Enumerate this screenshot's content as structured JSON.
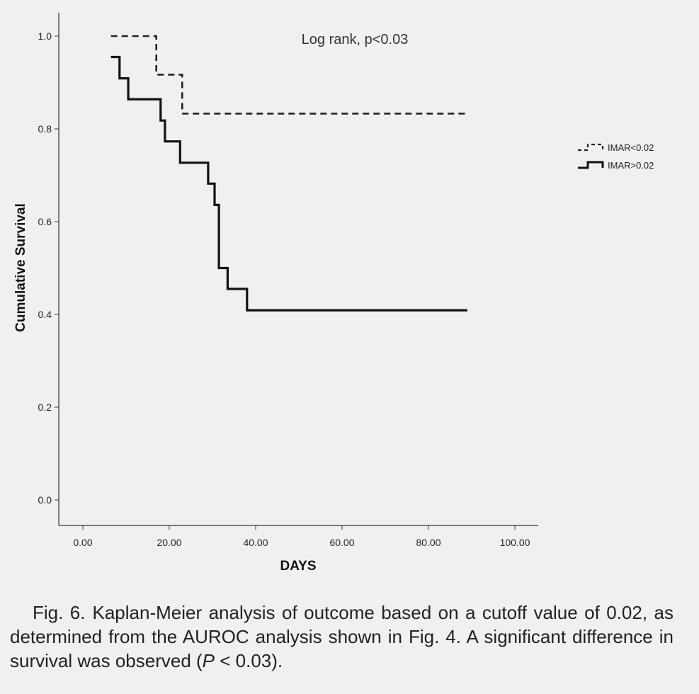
{
  "chart_data": {
    "type": "line",
    "subtype": "kaplan-meier-step",
    "xlabel": "DAYS",
    "ylabel": "Cumulative Survival",
    "xlim": [
      0,
      100
    ],
    "ylim": [
      0,
      1
    ],
    "x_ticks": [
      "0.00",
      "20.00",
      "40.00",
      "60.00",
      "80.00",
      "100.00"
    ],
    "y_ticks": [
      "0.0",
      "0.2",
      "0.4",
      "0.6",
      "0.8",
      "1.0"
    ],
    "x_tick_values": [
      0,
      20,
      40,
      60,
      80,
      100
    ],
    "y_tick_values": [
      0,
      0.2,
      0.4,
      0.6,
      0.8,
      1.0
    ],
    "grid": false,
    "legend_position": "right",
    "annotation": "Log rank, p<0.03",
    "series": [
      {
        "name": "IMAR<0.02",
        "style": "dashed",
        "color": "#222222",
        "x": [
          6.5,
          17,
          17,
          23,
          23,
          89
        ],
        "y": [
          1.0,
          1.0,
          0.917,
          0.917,
          0.833,
          0.833
        ]
      },
      {
        "name": "IMAR>0.02",
        "style": "solid",
        "color": "#111111",
        "x": [
          6.5,
          8.5,
          8.5,
          10.5,
          10.5,
          18,
          18,
          19,
          19,
          22.5,
          22.5,
          29,
          29,
          30.5,
          30.5,
          31.5,
          31.5,
          33.5,
          33.5,
          38,
          38,
          89
        ],
        "y": [
          0.955,
          0.955,
          0.909,
          0.909,
          0.864,
          0.864,
          0.818,
          0.818,
          0.773,
          0.773,
          0.727,
          0.727,
          0.682,
          0.682,
          0.636,
          0.636,
          0.5,
          0.5,
          0.455,
          0.455,
          0.409,
          0.409
        ]
      }
    ]
  },
  "caption": {
    "label": "Fig. 6.",
    "text": "Kaplan-Meier analysis of outcome based on a cutoff value of 0.02, as determined from the AUROC analysis shown in Fig. 4. A significant difference in survival was observed (",
    "p_symbol": "P",
    "p_rest": " < 0.03)."
  }
}
